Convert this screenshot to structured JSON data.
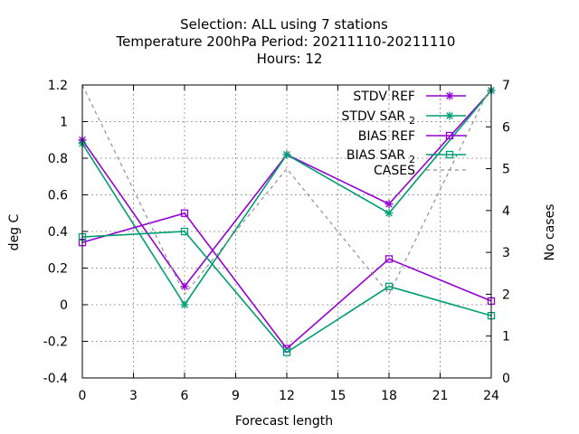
{
  "chart_data": {
    "type": "line",
    "title_lines": [
      "Selection: ALL using     7 stations",
      "Temperature 200hPa   Period: 20211110-20211110",
      "Hours:  12"
    ],
    "xlabel": "Forecast length",
    "ylabel": "deg C",
    "y2label": "No cases",
    "xlim": [
      0,
      24
    ],
    "ylim": [
      -0.4,
      1.2
    ],
    "y2lim": [
      0,
      7
    ],
    "xticks": [
      0,
      3,
      6,
      9,
      12,
      15,
      18,
      21,
      24
    ],
    "yticks": [
      -0.4,
      -0.2,
      0,
      0.2,
      0.4,
      0.6,
      0.8,
      1,
      1.2
    ],
    "y2ticks": [
      0,
      1,
      2,
      3,
      4,
      5,
      6,
      7
    ],
    "xtick_labels": [
      "0",
      "3",
      "6",
      "9",
      "12",
      "15",
      "18",
      "21",
      "24"
    ],
    "ytick_labels": [
      "-0.4",
      "-0.2",
      "0",
      "0.2",
      "0.4",
      "0.6",
      "0.8",
      "1",
      "1.2"
    ],
    "y2tick_labels": [
      "0",
      "1",
      "2",
      "3",
      "4",
      "5",
      "6",
      "7"
    ],
    "grid": true,
    "legend_position": "top-right",
    "x": [
      0,
      6,
      12,
      18,
      24
    ],
    "series": [
      {
        "name": "STDV REF",
        "sub": "",
        "axis": "y",
        "marker": "star",
        "style": "solid",
        "color": "#9400d3",
        "values": [
          0.9,
          0.1,
          0.82,
          0.55,
          1.17
        ]
      },
      {
        "name": "STDV SAR",
        "sub": "2",
        "axis": "y",
        "marker": "star",
        "style": "solid",
        "color": "#009e73",
        "values": [
          0.88,
          0.0,
          0.82,
          0.5,
          1.17
        ]
      },
      {
        "name": "BIAS REF",
        "sub": "",
        "axis": "y",
        "marker": "square",
        "style": "solid",
        "color": "#9400d3",
        "values": [
          0.34,
          0.5,
          -0.24,
          0.25,
          0.02
        ]
      },
      {
        "name": "BIAS SAR",
        "sub": "2",
        "axis": "y",
        "marker": "square",
        "style": "solid",
        "color": "#009e73",
        "values": [
          0.37,
          0.4,
          -0.26,
          0.1,
          -0.06
        ]
      },
      {
        "name": "CASES",
        "sub": "",
        "axis": "y2",
        "marker": "none",
        "style": "dashed",
        "color": "#909090",
        "values": [
          7,
          2,
          5,
          2,
          7
        ]
      }
    ]
  }
}
